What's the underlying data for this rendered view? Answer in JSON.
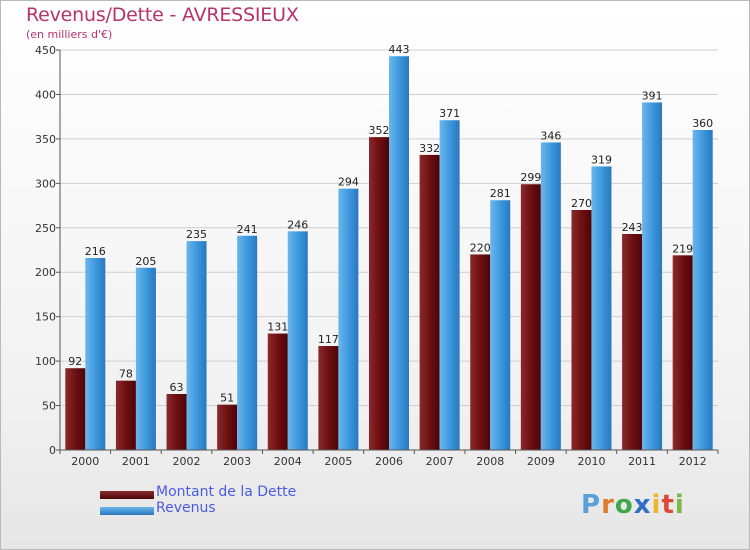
{
  "header": {
    "title": "Revenus/Dette - AVRESSIEUX",
    "subtitle": "(en milliers d'€)"
  },
  "logo": {
    "text": "Proxiti"
  },
  "colors": {
    "dette": "#6e0f12",
    "revenus": "#3a96dc",
    "axis": "#555555",
    "grid": "#cfcfcf"
  },
  "chart_data": {
    "type": "bar",
    "title": "Revenus/Dette - AVRESSIEUX",
    "subtitle": "(en milliers d'€)",
    "categories": [
      "2000",
      "2001",
      "2002",
      "2003",
      "2004",
      "2005",
      "2006",
      "2007",
      "2008",
      "2009",
      "2010",
      "2011",
      "2012"
    ],
    "series": [
      {
        "name": "Montant de la Dette",
        "values": [
          92,
          78,
          63,
          51,
          131,
          117,
          352,
          332,
          220,
          299,
          270,
          243,
          219
        ]
      },
      {
        "name": "Revenus",
        "values": [
          216,
          205,
          235,
          241,
          246,
          294,
          443,
          371,
          281,
          346,
          319,
          391,
          360
        ]
      }
    ],
    "ylim": [
      0,
      450
    ],
    "yticks": [
      0,
      50,
      100,
      150,
      200,
      250,
      300,
      350,
      400,
      450
    ],
    "grid": true,
    "legend": "bottom-left"
  }
}
